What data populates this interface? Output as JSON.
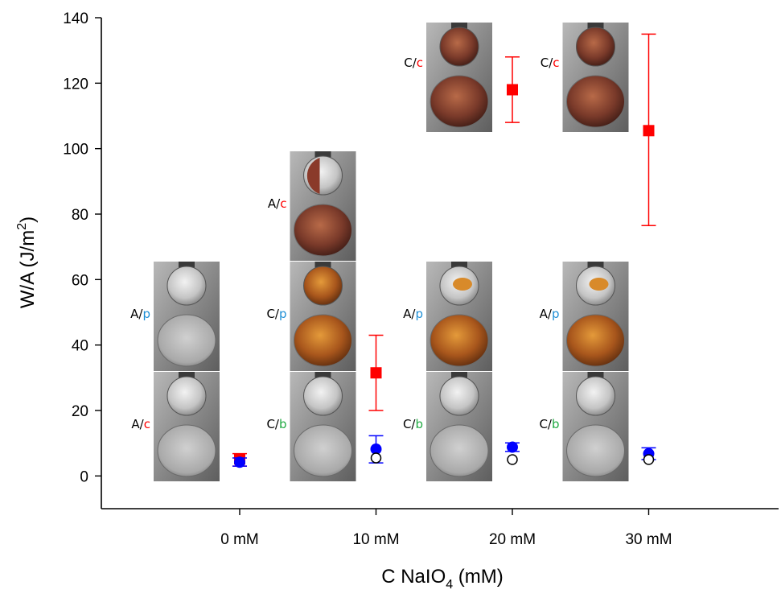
{
  "chart_data": {
    "type": "scatter",
    "categories": [
      "0 mM",
      "10 mM",
      "20 mM",
      "30 mM"
    ],
    "xlabel": "C NaIO",
    "xlabel_sub": "4",
    "xlabel_suffix": " (mM)",
    "ylabel": "W/A (J/m",
    "ylabel_sup": "2",
    "ylabel_suffix": ")",
    "ylim": [
      -10,
      140
    ],
    "yticks": [
      0,
      20,
      40,
      60,
      80,
      100,
      120,
      140
    ],
    "grid": false,
    "series": [
      {
        "marker": "square",
        "color": "#ff0000",
        "values": [
          5.2,
          31.5,
          118,
          105.5
        ],
        "err_low": [
          3.0,
          20.0,
          108.0,
          76.5
        ],
        "err_high": [
          6.8,
          43.0,
          128.0,
          135.0
        ]
      },
      {
        "marker": "circle-filled",
        "color": "#0000ff",
        "values": [
          4.2,
          8.2,
          8.8,
          6.8
        ],
        "err_low": [
          3.0,
          4.0,
          7.5,
          5.0
        ],
        "err_high": [
          5.5,
          12.3,
          10.1,
          8.6
        ]
      },
      {
        "marker": "circle-open",
        "color": "#000000",
        "values": [
          null,
          5.5,
          5.0,
          5.0
        ],
        "err_low": [
          null,
          null,
          null,
          null
        ],
        "err_high": [
          null,
          null,
          null,
          null
        ]
      }
    ],
    "inset_images": [
      {
        "prefix": "A/",
        "suffix": "c",
        "suffix_color": "#ff0000",
        "category": 0,
        "top": "dull",
        "bottom": "clear"
      },
      {
        "prefix": "A/",
        "suffix": "p",
        "suffix_color": "#1e8fd6",
        "category": 0,
        "top": "dull",
        "bottom": "clear"
      },
      {
        "prefix": "C/",
        "suffix": "b",
        "suffix_color": "#22aa44",
        "category": 1,
        "top": "dull",
        "bottom": "clear"
      },
      {
        "prefix": "C/",
        "suffix": "p",
        "suffix_color": "#1e8fd6",
        "category": 1,
        "top": "amber",
        "bottom": "amber"
      },
      {
        "prefix": "A/",
        "suffix": "c",
        "suffix_color": "#ff0000",
        "category": 1,
        "top": "half",
        "bottom": "brown"
      },
      {
        "prefix": "C/",
        "suffix": "b",
        "suffix_color": "#22aa44",
        "category": 2,
        "top": "dull",
        "bottom": "clear"
      },
      {
        "prefix": "A/",
        "suffix": "p",
        "suffix_color": "#1e8fd6",
        "category": 2,
        "top": "patch",
        "bottom": "amber"
      },
      {
        "prefix": "C/",
        "suffix": "c",
        "suffix_color": "#ff0000",
        "category": 2,
        "top": "brown",
        "bottom": "brown"
      },
      {
        "prefix": "C/",
        "suffix": "b",
        "suffix_color": "#22aa44",
        "category": 3,
        "top": "dull",
        "bottom": "clear"
      },
      {
        "prefix": "A/",
        "suffix": "p",
        "suffix_color": "#1e8fd6",
        "category": 3,
        "top": "patch",
        "bottom": "amber"
      },
      {
        "prefix": "C/",
        "suffix": "c",
        "suffix_color": "#ff0000",
        "category": 3,
        "top": "brown",
        "bottom": "brown"
      }
    ]
  }
}
